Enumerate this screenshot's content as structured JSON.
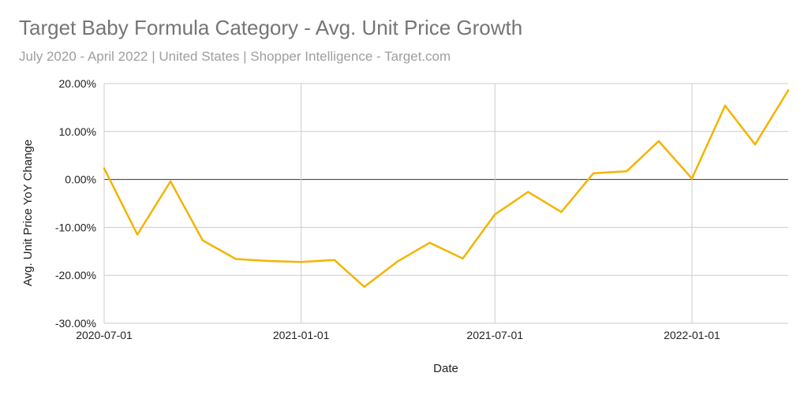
{
  "chart_data": {
    "type": "line",
    "title": "Target Baby Formula Category - Avg. Unit Price Growth",
    "subtitle": "July 2020 - April 2022 | United States | Shopper Intelligence  - Target.com",
    "xlabel": "Date",
    "ylabel": "Avg. Unit Price YoY Change",
    "x_ticks": [
      "2020-07-01",
      "2021-01-01",
      "2021-07-01",
      "2022-01-01"
    ],
    "y_ticks": [
      "20.00%",
      "10.00%",
      "0.00%",
      "-10.00%",
      "-20.00%",
      "-30.00%"
    ],
    "y_tick_values": [
      20,
      10,
      0,
      -10,
      -20,
      -30
    ],
    "ylim": [
      -30,
      20
    ],
    "xlim": [
      "2020-07-01",
      "2022-04-01"
    ],
    "grid": true,
    "series": [
      {
        "color": "#F4B400",
        "points": [
          {
            "x": "2020-07-01",
            "y": 2.3
          },
          {
            "x": "2020-08-01",
            "y": -11.5
          },
          {
            "x": "2020-09-01",
            "y": -0.4
          },
          {
            "x": "2020-10-01",
            "y": -12.7
          },
          {
            "x": "2020-11-01",
            "y": -16.6
          },
          {
            "x": "2020-12-01",
            "y": -17.0
          },
          {
            "x": "2021-01-01",
            "y": -17.2
          },
          {
            "x": "2021-02-01",
            "y": -16.8
          },
          {
            "x": "2021-03-01",
            "y": -22.4
          },
          {
            "x": "2021-04-01",
            "y": -17.1
          },
          {
            "x": "2021-05-01",
            "y": -13.2
          },
          {
            "x": "2021-06-01",
            "y": -16.5
          },
          {
            "x": "2021-07-01",
            "y": -7.3
          },
          {
            "x": "2021-08-01",
            "y": -2.6
          },
          {
            "x": "2021-09-01",
            "y": -6.8
          },
          {
            "x": "2021-10-01",
            "y": 1.3
          },
          {
            "x": "2021-11-01",
            "y": 1.7
          },
          {
            "x": "2021-12-01",
            "y": 8.0
          },
          {
            "x": "2022-01-01",
            "y": 0.2
          },
          {
            "x": "2022-02-01",
            "y": 15.4
          },
          {
            "x": "2022-03-01",
            "y": 7.3
          },
          {
            "x": "2022-04-01",
            "y": 18.6
          }
        ]
      }
    ]
  }
}
